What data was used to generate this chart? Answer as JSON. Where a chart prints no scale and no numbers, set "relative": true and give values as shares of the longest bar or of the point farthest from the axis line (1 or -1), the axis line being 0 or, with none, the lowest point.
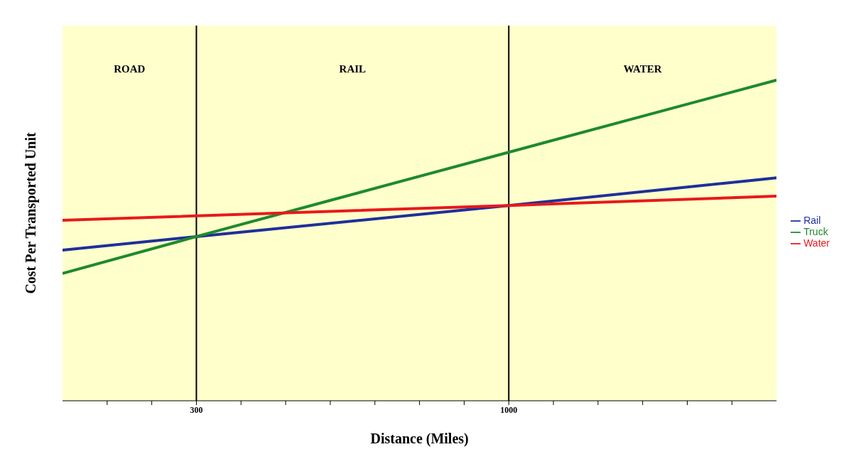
{
  "chart_data": {
    "type": "line",
    "xlabel": "Distance (Miles)",
    "ylabel": "Cost Per Transported Unit",
    "relative": true,
    "xlim": [
      0,
      1600
    ],
    "xticks": [
      {
        "value": 100,
        "label": null
      },
      {
        "value": 200,
        "label": null
      },
      300,
      {
        "value": 400,
        "label": null
      },
      {
        "value": 500,
        "label": null
      },
      {
        "value": 600,
        "label": null
      },
      {
        "value": 700,
        "label": null
      },
      {
        "value": 800,
        "label": null
      },
      {
        "value": 900,
        "label": null
      },
      1000,
      {
        "value": 1100,
        "label": null
      },
      {
        "value": 1200,
        "label": null
      },
      {
        "value": 1300,
        "label": null
      },
      {
        "value": 1400,
        "label": null
      },
      {
        "value": 1500,
        "label": null
      }
    ],
    "series": [
      {
        "name": "Rail",
        "color": "#1f2f9a",
        "x": [
          0,
          300,
          1000,
          1600
        ],
        "values": [
          0.47,
          0.512,
          0.609,
          0.695
        ]
      },
      {
        "name": "Truck",
        "color": "#1e8a2e",
        "x": [
          0,
          300,
          600,
          1000,
          1600
        ],
        "values": [
          0.397,
          0.512,
          0.625,
          0.775,
          1
        ]
      },
      {
        "name": "Water",
        "color": "#e8191b",
        "x": [
          0,
          1000,
          1600
        ],
        "values": [
          0.563,
          0.609,
          0.638
        ]
      }
    ],
    "bands": [
      {
        "axis": "x",
        "from": 0,
        "to": 300,
        "label": "ROAD",
        "color": "#ffffcc"
      },
      {
        "axis": "x",
        "from": 300,
        "to": 1000,
        "label": "RAIL",
        "color": "#ffffcc"
      },
      {
        "axis": "x",
        "from": 1000,
        "to": 1600,
        "label": "WATER",
        "color": "#ffffcc"
      }
    ],
    "ref_lines": [
      {
        "axis": "x",
        "value": 300,
        "color": "#000000"
      },
      {
        "axis": "x",
        "value": 1000,
        "color": "#000000"
      }
    ],
    "legend": "right",
    "tick_labels": "x",
    "line_style": "solid"
  }
}
